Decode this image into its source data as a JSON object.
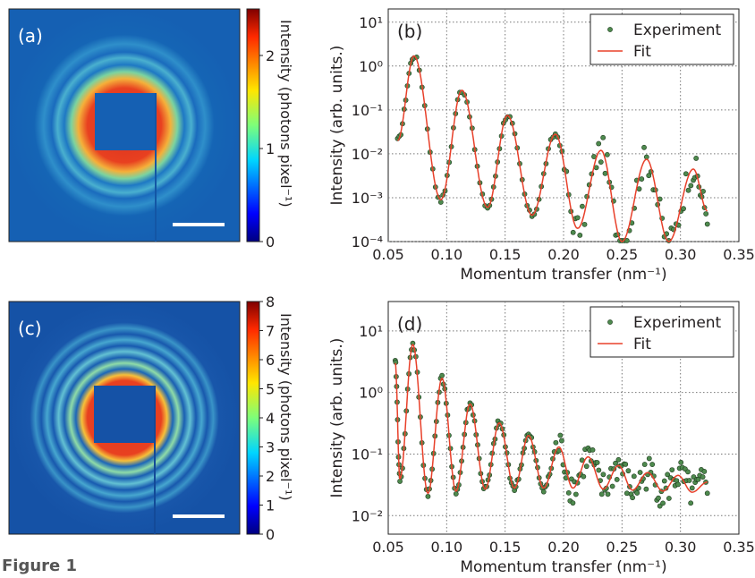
{
  "figure_label": "Figure 1",
  "colors": {
    "experiment_marker": "#4e8a4e",
    "fit_line": "#e8402a",
    "grid": "#888888",
    "background": "#ffffff"
  },
  "panel_a": {
    "label": "(a)",
    "colorbar_label": "Intensity (photons pixel⁻¹)",
    "colorbar_ticks": [
      "0",
      "1",
      "2"
    ],
    "colorbar_range": [
      0,
      2.5
    ],
    "colormap": "jet",
    "scale_bar": true
  },
  "panel_c": {
    "label": "(c)",
    "colorbar_label": "Intensity (photons pixel⁻¹)",
    "colorbar_ticks": [
      "0",
      "1",
      "2",
      "3",
      "4",
      "5",
      "6",
      "7",
      "8"
    ],
    "colorbar_range": [
      0,
      8
    ],
    "colormap": "jet",
    "scale_bar": true
  },
  "chart_data": [
    {
      "panel": "(b)",
      "type": "scatter",
      "xlabel": "Momentum transfer (nm⁻¹)",
      "ylabel": "Intensity (arb. units.)",
      "xlim": [
        0.05,
        0.35
      ],
      "ylim": [
        0.0001,
        20
      ],
      "yscale": "log",
      "grid": true,
      "legend_position": "top-right",
      "xticks": [
        "0.05",
        "0.10",
        "0.15",
        "0.20",
        "0.25",
        "0.30",
        "0.35"
      ],
      "yticks": [
        "10⁻⁴",
        "10⁻³",
        "10⁻²",
        "10⁻¹",
        "10⁰",
        "10¹"
      ],
      "series": [
        {
          "name": "Experiment",
          "kind": "points"
        },
        {
          "name": "Fit",
          "kind": "line"
        }
      ],
      "fit_peaks": [
        {
          "x": 0.072,
          "y": 1.7
        },
        {
          "x": 0.113,
          "y": 0.28
        },
        {
          "x": 0.152,
          "y": 0.075
        },
        {
          "x": 0.193,
          "y": 0.028
        },
        {
          "x": 0.232,
          "y": 0.012
        },
        {
          "x": 0.271,
          "y": 0.0075
        },
        {
          "x": 0.311,
          "y": 0.0045
        }
      ],
      "fit_minima": [
        {
          "x": 0.095,
          "y": 0.0009
        },
        {
          "x": 0.135,
          "y": 0.0006
        },
        {
          "x": 0.173,
          "y": 0.0004
        },
        {
          "x": 0.212,
          "y": 0.0002
        },
        {
          "x": 0.25,
          "y": 0.0001
        },
        {
          "x": 0.29,
          "y": 0.0001
        }
      ],
      "fit_end": {
        "x": 0.323,
        "y": 0.0005
      },
      "fit_start": {
        "x": 0.058,
        "y": 0.02
      }
    },
    {
      "panel": "(d)",
      "type": "scatter",
      "xlabel": "Momentum transfer (nm⁻¹)",
      "ylabel": "Intensity (arb. units.)",
      "xlim": [
        0.05,
        0.35
      ],
      "ylim": [
        0.005,
        30
      ],
      "yscale": "log",
      "grid": true,
      "legend_position": "top-right",
      "xticks": [
        "0.05",
        "0.10",
        "0.15",
        "0.20",
        "0.25",
        "0.30",
        "0.35"
      ],
      "yticks": [
        "10⁻²",
        "10⁻¹",
        "10⁰",
        "10¹"
      ],
      "series": [
        {
          "name": "Experiment",
          "kind": "points"
        },
        {
          "name": "Fit",
          "kind": "line"
        }
      ],
      "fit_peaks": [
        {
          "x": 0.071,
          "y": 6.0
        },
        {
          "x": 0.096,
          "y": 1.7
        },
        {
          "x": 0.12,
          "y": 0.65
        },
        {
          "x": 0.145,
          "y": 0.32
        },
        {
          "x": 0.17,
          "y": 0.2
        },
        {
          "x": 0.196,
          "y": 0.13
        },
        {
          "x": 0.221,
          "y": 0.09
        },
        {
          "x": 0.247,
          "y": 0.065
        },
        {
          "x": 0.272,
          "y": 0.05
        },
        {
          "x": 0.298,
          "y": 0.045
        },
        {
          "x": 0.323,
          "y": 0.035
        }
      ],
      "fit_minima": [
        {
          "x": 0.06,
          "y": 0.04
        },
        {
          "x": 0.084,
          "y": 0.023
        },
        {
          "x": 0.108,
          "y": 0.025
        },
        {
          "x": 0.133,
          "y": 0.027
        },
        {
          "x": 0.158,
          "y": 0.028
        },
        {
          "x": 0.183,
          "y": 0.028
        },
        {
          "x": 0.208,
          "y": 0.028
        },
        {
          "x": 0.234,
          "y": 0.027
        },
        {
          "x": 0.259,
          "y": 0.026
        },
        {
          "x": 0.285,
          "y": 0.025
        },
        {
          "x": 0.31,
          "y": 0.024
        }
      ],
      "fit_start": {
        "x": 0.056,
        "y": 3.0
      }
    }
  ]
}
